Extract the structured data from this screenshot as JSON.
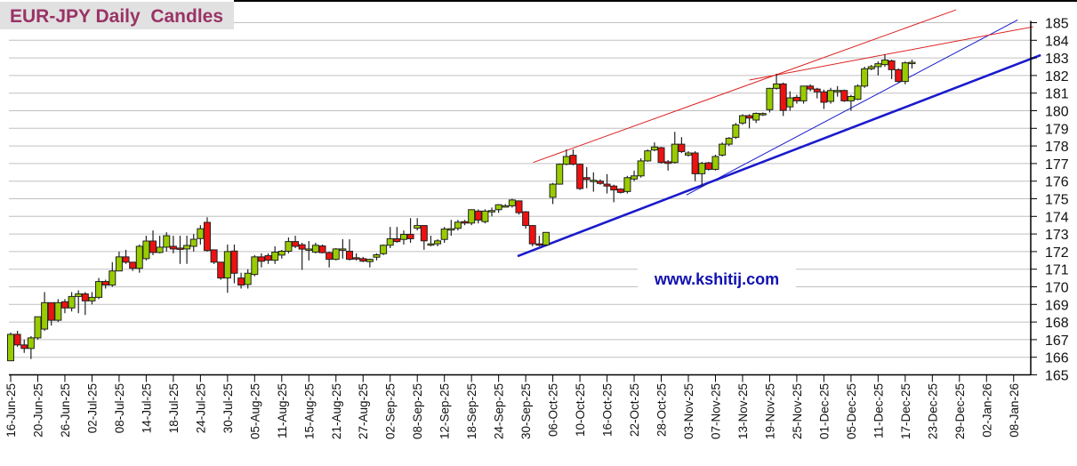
{
  "chart_data": {
    "type": "candlestick",
    "title": "EUR-JPY Daily  Candles",
    "watermark": "www.kshitij.com",
    "ylim": [
      165,
      185
    ],
    "y_ticks": [
      165,
      166,
      167,
      168,
      169,
      170,
      171,
      172,
      173,
      174,
      175,
      176,
      177,
      178,
      179,
      180,
      181,
      182,
      183,
      184,
      185
    ],
    "y_axis_side": "right",
    "grid": true,
    "x_tick_every_bars": 4,
    "x_tick_labels": [
      "16-Jun-25",
      "20-Jun-25",
      "26-Jun-25",
      "02-Jul-25",
      "08-Jul-25",
      "14-Jul-25",
      "18-Jul-25",
      "24-Jul-25",
      "30-Jul-25",
      "05-Aug-25",
      "11-Aug-25",
      "15-Aug-25",
      "21-Aug-25",
      "27-Aug-25",
      "02-Sep-25",
      "08-Sep-25",
      "12-Sep-25",
      "18-Sep-25",
      "24-Sep-25",
      "30-Sep-25",
      "06-Oct-25",
      "10-Oct-25",
      "16-Oct-25",
      "22-Oct-25",
      "28-Oct-25",
      "03-Nov-25",
      "07-Nov-25",
      "13-Nov-25",
      "19-Nov-25",
      "25-Nov-25",
      "01-Dec-25",
      "05-Dec-25",
      "11-Dec-25",
      "17-Dec-25",
      "23-Dec-25",
      "29-Dec-25",
      "02-Jan-26",
      "08-Jan-26"
    ],
    "colors": {
      "up": "#99cc00",
      "down": "#ee1111",
      "outline": "#222222",
      "grid": "#c0c0c0",
      "title": "#993366",
      "trend_blue": "#1a1acc",
      "trend_red": "#dd2222"
    },
    "ohlc": [
      [
        165.8,
        167.4,
        165.8,
        167.3
      ],
      [
        167.3,
        167.5,
        166.6,
        166.7
      ],
      [
        166.7,
        167.0,
        166.25,
        166.5
      ],
      [
        166.5,
        167.2,
        165.9,
        167.1
      ],
      [
        167.1,
        168.3,
        167.0,
        168.3
      ],
      [
        167.6,
        169.7,
        167.5,
        169.1
      ],
      [
        169.1,
        169.1,
        167.8,
        168.1
      ],
      [
        168.1,
        169.3,
        168.0,
        169.1
      ],
      [
        169.15,
        169.3,
        168.5,
        168.8
      ],
      [
        168.8,
        169.7,
        168.6,
        169.45
      ],
      [
        169.45,
        169.8,
        168.5,
        169.6
      ],
      [
        169.6,
        169.7,
        168.4,
        169.2
      ],
      [
        169.2,
        169.7,
        169.0,
        169.4
      ],
      [
        169.4,
        170.5,
        169.3,
        170.3
      ],
      [
        170.3,
        170.4,
        169.9,
        170.1
      ],
      [
        170.1,
        171.4,
        170.0,
        170.9
      ],
      [
        170.9,
        172.0,
        170.9,
        171.7
      ],
      [
        171.7,
        172.1,
        171.3,
        171.4
      ],
      [
        171.4,
        171.4,
        170.9,
        171.05
      ],
      [
        171.05,
        172.4,
        170.8,
        172.3
      ],
      [
        171.6,
        172.9,
        171.5,
        172.6
      ],
      [
        172.6,
        173.2,
        171.8,
        171.95
      ],
      [
        171.95,
        172.9,
        171.9,
        172.25
      ],
      [
        172.25,
        173.1,
        172.0,
        172.9
      ],
      [
        172.3,
        172.9,
        171.9,
        172.15
      ],
      [
        172.2,
        172.9,
        171.3,
        172.15
      ],
      [
        172.15,
        172.9,
        171.3,
        172.35
      ],
      [
        172.3,
        173.0,
        172.0,
        172.7
      ],
      [
        172.74,
        173.5,
        172.4,
        173.3
      ],
      [
        173.66,
        173.95,
        172.0,
        172.06
      ],
      [
        172.1,
        172.1,
        171.3,
        171.4
      ],
      [
        171.4,
        171.4,
        170.4,
        170.5
      ],
      [
        170.5,
        172.4,
        169.66,
        172.0
      ],
      [
        172.03,
        172.4,
        170.2,
        170.77
      ],
      [
        170.5,
        170.8,
        169.9,
        170.1
      ],
      [
        170.13,
        171.0,
        169.9,
        170.77
      ],
      [
        170.7,
        171.8,
        170.6,
        171.7
      ],
      [
        171.7,
        171.9,
        171.1,
        171.45
      ],
      [
        171.77,
        171.9,
        171.3,
        171.51
      ],
      [
        171.51,
        172.3,
        171.3,
        171.97
      ],
      [
        171.8,
        172.1,
        171.6,
        172.02
      ],
      [
        172.02,
        172.8,
        171.9,
        172.57
      ],
      [
        172.57,
        172.9,
        172.2,
        172.3
      ],
      [
        172.39,
        172.5,
        170.96,
        172.14
      ],
      [
        172.15,
        172.6,
        171.5,
        172.15
      ],
      [
        171.97,
        172.5,
        171.9,
        172.36
      ],
      [
        172.32,
        172.4,
        171.9,
        171.94
      ],
      [
        171.94,
        172.0,
        171.1,
        171.56
      ],
      [
        171.56,
        172.2,
        171.5,
        172.15
      ],
      [
        172.15,
        172.7,
        171.6,
        172.15
      ],
      [
        172.02,
        172.7,
        171.5,
        171.56
      ],
      [
        171.65,
        171.9,
        171.5,
        171.6
      ],
      [
        171.6,
        171.7,
        171.4,
        171.46
      ],
      [
        171.43,
        171.6,
        171.1,
        171.56
      ],
      [
        171.68,
        171.9,
        171.5,
        171.82
      ],
      [
        171.88,
        172.4,
        171.8,
        172.36
      ],
      [
        172.36,
        173.4,
        172.2,
        172.73
      ],
      [
        172.73,
        173.4,
        172.5,
        172.57
      ],
      [
        172.69,
        173.2,
        172.4,
        172.98
      ],
      [
        172.98,
        173.9,
        172.5,
        172.73
      ],
      [
        173.33,
        173.9,
        173.2,
        173.48
      ],
      [
        173.48,
        173.5,
        172.1,
        172.61
      ],
      [
        172.44,
        172.9,
        172.3,
        172.44
      ],
      [
        172.44,
        172.7,
        172.3,
        172.61
      ],
      [
        172.69,
        173.4,
        172.5,
        173.28
      ],
      [
        173.28,
        173.8,
        172.9,
        173.3
      ],
      [
        173.32,
        173.8,
        173.2,
        173.67
      ],
      [
        173.7,
        173.8,
        173.5,
        173.62
      ],
      [
        173.62,
        174.4,
        173.5,
        174.38
      ],
      [
        174.3,
        174.4,
        173.6,
        173.79
      ],
      [
        173.7,
        174.4,
        173.6,
        174.3
      ],
      [
        174.3,
        174.5,
        174.0,
        174.33
      ],
      [
        174.38,
        174.7,
        174.2,
        174.66
      ],
      [
        174.6,
        174.7,
        174.5,
        174.6
      ],
      [
        174.6,
        175.0,
        174.5,
        174.93
      ],
      [
        174.88,
        174.9,
        174.1,
        174.21
      ],
      [
        174.26,
        174.3,
        173.3,
        173.48
      ],
      [
        173.48,
        173.5,
        172.3,
        172.44
      ],
      [
        172.44,
        172.9,
        172.3,
        172.38
      ],
      [
        172.38,
        173.1,
        172.3,
        173.09
      ],
      [
        175.08,
        175.9,
        174.7,
        175.83
      ],
      [
        175.83,
        177.0,
        175.8,
        176.96
      ],
      [
        176.96,
        177.8,
        176.9,
        177.4
      ],
      [
        177.47,
        177.8,
        176.9,
        176.96
      ],
      [
        176.96,
        177.0,
        175.5,
        175.58
      ],
      [
        176.2,
        176.8,
        175.6,
        176.09
      ],
      [
        176.05,
        176.5,
        175.4,
        176.05
      ],
      [
        176.0,
        176.1,
        175.8,
        175.87
      ],
      [
        175.83,
        176.4,
        175.3,
        175.72
      ],
      [
        175.72,
        175.8,
        174.8,
        175.5
      ],
      [
        175.55,
        175.6,
        175.3,
        175.36
      ],
      [
        175.41,
        176.3,
        175.3,
        176.2
      ],
      [
        176.12,
        176.6,
        176.0,
        176.3
      ],
      [
        176.3,
        177.3,
        176.2,
        177.15
      ],
      [
        177.15,
        177.8,
        177.1,
        177.72
      ],
      [
        177.77,
        178.2,
        177.7,
        177.94
      ],
      [
        177.9,
        177.95,
        177.0,
        177.06
      ],
      [
        177.1,
        177.2,
        176.6,
        177.01
      ],
      [
        177.06,
        178.8,
        177.0,
        178.1
      ],
      [
        178.1,
        178.5,
        177.6,
        177.68
      ],
      [
        177.48,
        177.7,
        177.4,
        177.6
      ],
      [
        177.6,
        177.7,
        176.0,
        176.42
      ],
      [
        176.42,
        177.1,
        175.7,
        177.01
      ],
      [
        177.04,
        177.1,
        176.6,
        176.67
      ],
      [
        176.67,
        177.5,
        176.6,
        177.4
      ],
      [
        177.48,
        178.2,
        177.4,
        178.1
      ],
      [
        178.1,
        178.5,
        178.0,
        178.44
      ],
      [
        178.49,
        179.3,
        178.4,
        179.2
      ],
      [
        179.3,
        179.8,
        179.2,
        179.72
      ],
      [
        179.72,
        179.8,
        179.0,
        179.58
      ],
      [
        179.47,
        179.9,
        179.3,
        179.85
      ],
      [
        179.84,
        179.9,
        179.7,
        179.84
      ],
      [
        180.06,
        181.3,
        179.9,
        181.27
      ],
      [
        181.27,
        182.1,
        181.2,
        181.52
      ],
      [
        181.52,
        181.6,
        179.7,
        180.02
      ],
      [
        180.22,
        181.1,
        180.0,
        180.73
      ],
      [
        180.76,
        180.9,
        180.4,
        180.56
      ],
      [
        180.56,
        181.4,
        180.4,
        181.4
      ],
      [
        181.4,
        181.5,
        181.1,
        181.23
      ],
      [
        181.23,
        181.3,
        180.7,
        181.07
      ],
      [
        181.07,
        181.2,
        180.1,
        180.48
      ],
      [
        180.53,
        181.3,
        180.4,
        181.15
      ],
      [
        181.15,
        181.4,
        180.8,
        181.15
      ],
      [
        181.15,
        181.2,
        180.5,
        180.56
      ],
      [
        180.56,
        180.9,
        180.0,
        180.81
      ],
      [
        180.65,
        181.5,
        180.6,
        181.4
      ],
      [
        181.4,
        182.5,
        181.3,
        182.38
      ],
      [
        182.38,
        182.6,
        182.3,
        182.5
      ],
      [
        182.5,
        182.8,
        182.0,
        182.67
      ],
      [
        182.62,
        183.2,
        182.5,
        182.88
      ],
      [
        182.83,
        182.9,
        181.8,
        182.33
      ],
      [
        182.33,
        182.4,
        181.6,
        181.66
      ],
      [
        181.66,
        182.8,
        181.5,
        182.72
      ],
      [
        182.75,
        182.9,
        182.4,
        182.75
      ]
    ],
    "trendlines": [
      {
        "color": "trend_blue",
        "weight": "thick",
        "from": {
          "bar": 74.8,
          "price": 171.74
        },
        "to": {
          "bar": 152,
          "price": 183.16
        }
      },
      {
        "color": "trend_blue",
        "weight": "thin",
        "from": {
          "bar": 99.7,
          "price": 175.21
        },
        "to": {
          "bar": 148.6,
          "price": 185.16
        }
      },
      {
        "color": "trend_red",
        "weight": "thin",
        "from": {
          "bar": 77.1,
          "price": 177.06
        },
        "to": {
          "bar": 139.5,
          "price": 185.73
        }
      },
      {
        "color": "trend_red",
        "weight": "thin",
        "from": {
          "bar": 109,
          "price": 181.74
        },
        "to": {
          "bar": 150.9,
          "price": 184.77
        }
      }
    ]
  }
}
